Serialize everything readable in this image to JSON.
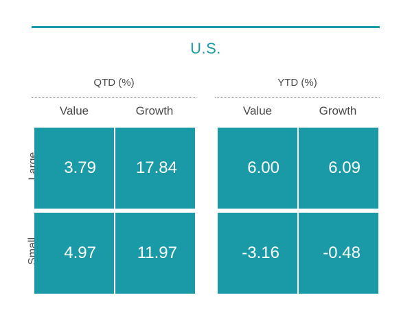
{
  "chart_data": {
    "type": "table",
    "title": "U.S.",
    "panels": [
      {
        "header": "QTD (%)",
        "columns": [
          "Value",
          "Growth"
        ],
        "rows": [
          {
            "label": "Large",
            "values": [
              "3.79",
              "17.84"
            ]
          },
          {
            "label": "Small",
            "values": [
              "4.97",
              "11.97"
            ]
          }
        ]
      },
      {
        "header": "YTD (%)",
        "columns": [
          "Value",
          "Growth"
        ],
        "rows": [
          {
            "label": "Large",
            "values": [
              "6.00",
              "6.09"
            ]
          },
          {
            "label": "Small",
            "values": [
              "-3.16",
              "-0.48"
            ]
          }
        ]
      }
    ],
    "row_labels": [
      "Large",
      "Small"
    ]
  },
  "colors": {
    "accent": "#1a9aa7",
    "cell_text": "#ffffff",
    "label_text": "#4a4a4a"
  }
}
